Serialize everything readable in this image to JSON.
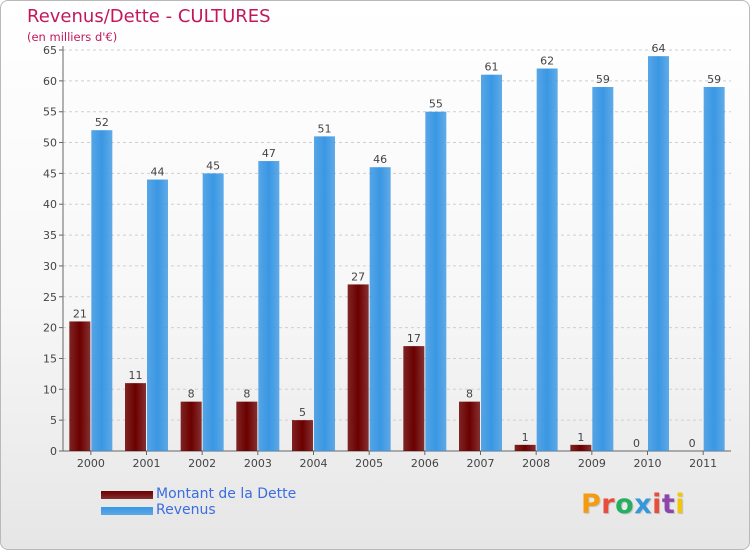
{
  "colors": {
    "debt": "#6b0000",
    "revenue": "#3a97e3",
    "title": "#c2185b",
    "legend_text": "#3b6de0"
  },
  "header": {
    "title": "Revenus/Dette - CULTURES",
    "subtitle": "(en milliers d'€)"
  },
  "legend": {
    "items": [
      {
        "label": "Montant de la Dette",
        "color": "#6b0000"
      },
      {
        "label": "Revenus",
        "color": "#3a97e3"
      }
    ]
  },
  "logo": {
    "text": "Proxiti",
    "letter_colors": [
      "#f39c12",
      "#e74c3c",
      "#27ae60",
      "#3498db",
      "#e74c3c",
      "#8e44ad",
      "#f1c40f"
    ]
  },
  "chart_data": {
    "type": "bar",
    "title": "Revenus/Dette - CULTURES",
    "subtitle": "(en milliers d'€)",
    "categories": [
      "2000",
      "2001",
      "2002",
      "2003",
      "2004",
      "2005",
      "2006",
      "2007",
      "2008",
      "2009",
      "2010",
      "2011"
    ],
    "series": [
      {
        "name": "Montant de la Dette",
        "color": "#6b0000",
        "values": [
          21,
          11,
          8,
          8,
          5,
          27,
          17,
          8,
          1,
          1,
          0,
          0
        ]
      },
      {
        "name": "Revenus",
        "color": "#3a97e3",
        "values": [
          52,
          44,
          45,
          47,
          51,
          46,
          55,
          61,
          62,
          59,
          64,
          59
        ]
      }
    ],
    "ylim": [
      0,
      65
    ],
    "yticks": [
      0,
      5,
      10,
      15,
      20,
      25,
      30,
      35,
      40,
      45,
      50,
      55,
      60,
      65
    ],
    "grid": true,
    "legend_position": "bottom-left"
  }
}
